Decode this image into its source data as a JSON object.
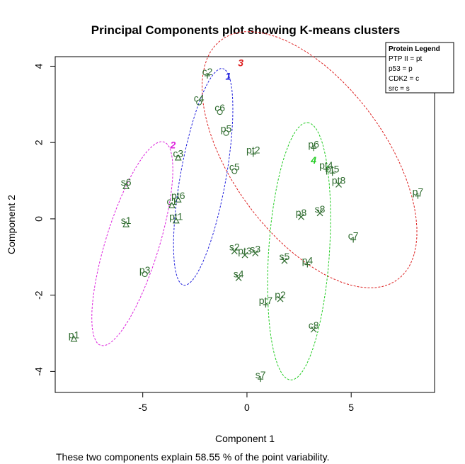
{
  "chart_data": {
    "type": "scatter",
    "title": "Principal Components plot showing K-means clusters",
    "xlabel": "Component 1",
    "ylabel": "Component 2",
    "caption": "These two components explain 58.55 % of the point variability.",
    "xlim": [
      -9.2,
      9.0
    ],
    "ylim": [
      -4.55,
      4.25
    ],
    "xticks": [
      -5,
      0,
      5
    ],
    "yticks": [
      -4,
      -2,
      0,
      2,
      4
    ],
    "grid": false,
    "legend": {
      "position": "top-right",
      "title": "Protein Legend",
      "items": [
        "PTP II = pt",
        "p53 = p",
        "CDK2 = c",
        "src = s"
      ]
    },
    "colors": {
      "points": "#2e6b2e",
      "cluster_1": "#2222dd",
      "cluster_2": "#dd22dd",
      "cluster_3": "#dd2222",
      "cluster_4": "#22cc22"
    },
    "clusters": [
      {
        "label": "1",
        "color": "#2222dd",
        "cx": -2.1,
        "cy": 1.1,
        "rx": 3.0,
        "ry": 1.05,
        "angle_deg": 70,
        "label_x": -0.9,
        "label_y": 3.65
      },
      {
        "label": "2",
        "color": "#dd22dd",
        "cx": -5.5,
        "cy": -0.65,
        "rx": 3.1,
        "ry": 1.15,
        "angle_deg": 57,
        "label_x": -3.55,
        "label_y": 1.85
      },
      {
        "label": "3",
        "color": "#dd2222",
        "cx": 3.0,
        "cy": 1.55,
        "rx": 5.6,
        "ry": 2.55,
        "angle_deg": -26,
        "label_x": -0.3,
        "label_y": 4.0
      },
      {
        "label": "4",
        "color": "#22cc22",
        "cx": 2.5,
        "cy": -0.85,
        "rx": 3.4,
        "ry": 1.45,
        "angle_deg": 82,
        "label_x": 3.2,
        "label_y": 1.45
      }
    ],
    "points": [
      {
        "label": "c2",
        "x": -1.9,
        "y": 3.75,
        "marker": "plus"
      },
      {
        "label": "c4",
        "x": -2.3,
        "y": 3.05,
        "marker": "circle"
      },
      {
        "label": "c6",
        "x": -1.3,
        "y": 2.8,
        "marker": "circle"
      },
      {
        "label": "p5",
        "x": -1.0,
        "y": 2.25,
        "marker": "circle"
      },
      {
        "label": "c5",
        "x": -0.6,
        "y": 1.25,
        "marker": "circle"
      },
      {
        "label": "pt2",
        "x": 0.3,
        "y": 1.7,
        "marker": "plus"
      },
      {
        "label": "c3",
        "x": -3.3,
        "y": 1.6,
        "marker": "triangle"
      },
      {
        "label": "s6",
        "x": -5.8,
        "y": 0.85,
        "marker": "triangle"
      },
      {
        "label": "pt6",
        "x": -3.3,
        "y": 0.5,
        "marker": "triangle"
      },
      {
        "label": "c1",
        "x": -3.6,
        "y": 0.35,
        "marker": "triangle"
      },
      {
        "label": "s1",
        "x": -5.8,
        "y": -0.15,
        "marker": "triangle"
      },
      {
        "label": "pt1",
        "x": -3.4,
        "y": -0.05,
        "marker": "triangle"
      },
      {
        "label": "p3",
        "x": -4.9,
        "y": -1.45,
        "marker": "circle"
      },
      {
        "label": "p1",
        "x": -8.3,
        "y": -3.15,
        "marker": "triangle"
      },
      {
        "label": "p6",
        "x": 3.2,
        "y": 1.85,
        "marker": "plus"
      },
      {
        "label": "pt4",
        "x": 3.8,
        "y": 1.3,
        "marker": "plus"
      },
      {
        "label": "pt5",
        "x": 4.1,
        "y": 1.2,
        "marker": "plus"
      },
      {
        "label": "pt8",
        "x": 4.4,
        "y": 0.9,
        "marker": "cross"
      },
      {
        "label": "p7",
        "x": 8.2,
        "y": 0.6,
        "marker": "plus"
      },
      {
        "label": "p8",
        "x": 2.6,
        "y": 0.05,
        "marker": "cross"
      },
      {
        "label": "s8",
        "x": 3.5,
        "y": 0.15,
        "marker": "cross"
      },
      {
        "label": "c7",
        "x": 5.1,
        "y": -0.55,
        "marker": "plus"
      },
      {
        "label": "s2",
        "x": -0.6,
        "y": -0.85,
        "marker": "cross"
      },
      {
        "label": "pt3",
        "x": -0.1,
        "y": -0.95,
        "marker": "cross"
      },
      {
        "label": "s3",
        "x": 0.4,
        "y": -0.9,
        "marker": "cross"
      },
      {
        "label": "s5",
        "x": 1.8,
        "y": -1.1,
        "marker": "cross"
      },
      {
        "label": "p4",
        "x": 2.9,
        "y": -1.2,
        "marker": "plus"
      },
      {
        "label": "s4",
        "x": -0.4,
        "y": -1.55,
        "marker": "cross"
      },
      {
        "label": "pt7",
        "x": 0.9,
        "y": -2.25,
        "marker": "plus"
      },
      {
        "label": "p2",
        "x": 1.6,
        "y": -2.1,
        "marker": "cross"
      },
      {
        "label": "c8",
        "x": 3.2,
        "y": -2.9,
        "marker": "cross"
      },
      {
        "label": "s7",
        "x": 0.65,
        "y": -4.2,
        "marker": "plus"
      }
    ]
  }
}
